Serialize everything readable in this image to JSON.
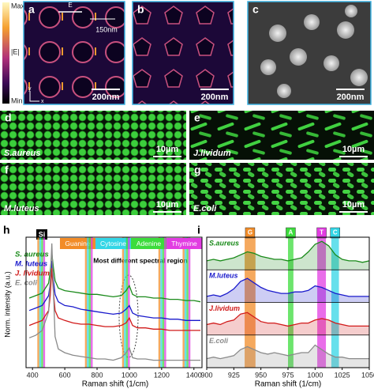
{
  "colorbar": {
    "max": "Max",
    "label": "|E|",
    "min": "Min"
  },
  "panels": {
    "a": {
      "label": "a",
      "field": "E",
      "diameter": "150nm",
      "scale": "200nm",
      "axes": [
        "y",
        "x"
      ]
    },
    "b": {
      "label": "b",
      "scale": "200nm"
    },
    "c": {
      "label": "c",
      "scale": "200nm"
    },
    "d": {
      "label": "d",
      "species": "S.aureus",
      "scale": "10µm"
    },
    "e": {
      "label": "e",
      "species": "J.lividum",
      "scale": "10µm"
    },
    "f": {
      "label": "f",
      "species": "M.luteus",
      "scale": "10µm"
    },
    "g": {
      "label": "g",
      "species": "E.coli",
      "scale": "10µm"
    }
  },
  "chart_data": [
    {
      "type": "line",
      "label": "h",
      "xlabel": "Raman shift (1/cm)",
      "ylabel": "Norm. intensity (a.u.)",
      "annotations": [
        "Si",
        "Most different spectral region"
      ],
      "x": [
        380,
        420,
        460,
        500,
        510,
        520,
        530,
        540,
        560,
        600,
        650,
        700,
        750,
        800,
        850,
        900,
        950,
        980,
        1000,
        1020,
        1050,
        1100,
        1150,
        1200,
        1250,
        1300,
        1350,
        1400,
        1440
      ],
      "series": [
        {
          "name": "S. aureus",
          "color": "#1a8a1a",
          "values": [
            5.6,
            5.8,
            6.0,
            6.8,
            7.8,
            9.2,
            8.0,
            7.0,
            6.4,
            6.2,
            6.1,
            6.0,
            5.9,
            5.9,
            5.8,
            5.7,
            5.8,
            6.2,
            6.6,
            5.9,
            5.7,
            5.7,
            5.6,
            5.6,
            5.5,
            5.5,
            5.4,
            5.4,
            5.3
          ]
        },
        {
          "name": "M. luteus",
          "color": "#1a1acc",
          "values": [
            4.6,
            4.8,
            5.0,
            5.8,
            6.8,
            8.6,
            7.0,
            5.9,
            5.3,
            5.0,
            4.9,
            4.7,
            4.6,
            4.5,
            4.4,
            4.3,
            4.4,
            4.7,
            5.0,
            4.4,
            4.2,
            4.1,
            4.0,
            4.0,
            3.9,
            3.9,
            3.8,
            3.8,
            3.8
          ]
        },
        {
          "name": "J. lividum",
          "color": "#d11a1a",
          "values": [
            3.4,
            3.6,
            3.8,
            4.6,
            5.8,
            8.0,
            6.0,
            4.6,
            4.0,
            3.8,
            3.6,
            3.5,
            3.5,
            3.4,
            3.3,
            3.3,
            3.4,
            3.6,
            4.0,
            3.4,
            3.2,
            3.2,
            3.1,
            3.1,
            3.0,
            3.0,
            3.0,
            3.0,
            3.0
          ]
        },
        {
          "name": "E. coli",
          "color": "#8a8a8a",
          "values": [
            2.4,
            2.6,
            3.0,
            4.5,
            7.0,
            10.0,
            6.0,
            2.5,
            1.5,
            1.2,
            1.0,
            0.9,
            0.8,
            0.7,
            0.7,
            0.6,
            0.8,
            1.2,
            1.6,
            0.8,
            0.7,
            0.7,
            0.6,
            0.6,
            0.6,
            0.6,
            0.6,
            0.6,
            0.6
          ]
        }
      ],
      "bands": [
        {
          "name": "Guanine",
          "color": "#f28c28",
          "ranges": [
            [
              430,
              442
            ],
            [
              725,
              737
            ],
            [
              955,
              967
            ],
            [
              1180,
              1192
            ],
            [
              1330,
              1342
            ]
          ]
        },
        {
          "name": "Cytosine",
          "color": "#33d6e6",
          "ranges": [
            [
              442,
              454
            ],
            [
              737,
              749
            ],
            [
              967,
              979
            ],
            [
              1192,
              1204
            ],
            [
              1342,
              1354
            ]
          ]
        },
        {
          "name": "Adenine",
          "color": "#3cdc3c",
          "ranges": [
            [
              454,
              466
            ],
            [
              749,
              761
            ],
            [
              979,
              991
            ],
            [
              1204,
              1216
            ],
            [
              1354,
              1366
            ]
          ]
        },
        {
          "name": "Thymine",
          "color": "#e23ce2",
          "ranges": [
            [
              466,
              478
            ],
            [
              761,
              773
            ],
            [
              991,
              1003
            ],
            [
              1216,
              1228
            ],
            [
              1366,
              1378
            ]
          ]
        }
      ],
      "xlim": [
        360,
        1450
      ],
      "xticks": [
        400,
        600,
        800,
        1000,
        1200,
        1400
      ],
      "ylim": [
        0,
        10.5
      ]
    },
    {
      "type": "area",
      "label": "i",
      "xlabel": "Raman shift (1/cm)",
      "x": [
        900,
        906.25,
        912.5,
        918.75,
        925,
        931.25,
        937.5,
        943.75,
        950,
        956.25,
        962.5,
        968.75,
        975,
        981.25,
        987.5,
        993.75,
        1000,
        1006.25,
        1012.5,
        1018.75,
        1025,
        1031.25,
        1037.5,
        1043.75,
        1050
      ],
      "series": [
        {
          "name": "S.aureus",
          "color": "#1a8a1a",
          "values": [
            0.3,
            0.35,
            0.3,
            0.35,
            0.4,
            0.5,
            0.6,
            0.55,
            0.45,
            0.4,
            0.35,
            0.35,
            0.3,
            0.35,
            0.4,
            0.6,
            0.85,
            0.95,
            0.8,
            0.5,
            0.35,
            0.3,
            0.3,
            0.25,
            0.3
          ]
        },
        {
          "name": "M.luteus",
          "color": "#1a1acc",
          "values": [
            0.2,
            0.25,
            0.2,
            0.3,
            0.45,
            0.7,
            0.8,
            0.65,
            0.5,
            0.4,
            0.35,
            0.3,
            0.3,
            0.35,
            0.35,
            0.4,
            0.55,
            0.5,
            0.4,
            0.3,
            0.25,
            0.2,
            0.2,
            0.2,
            0.2
          ]
        },
        {
          "name": "J.lividum",
          "color": "#d11a1a",
          "values": [
            0.35,
            0.4,
            0.35,
            0.45,
            0.5,
            0.7,
            0.75,
            0.6,
            0.45,
            0.4,
            0.4,
            0.35,
            0.3,
            0.35,
            0.4,
            0.4,
            0.5,
            0.55,
            0.5,
            0.4,
            0.35,
            0.3,
            0.3,
            0.3,
            0.3
          ]
        },
        {
          "name": "E.coli",
          "color": "#8a8a8a",
          "values": [
            0.3,
            0.35,
            0.3,
            0.35,
            0.4,
            0.6,
            0.7,
            0.6,
            0.5,
            0.45,
            0.5,
            0.45,
            0.4,
            0.45,
            0.5,
            0.5,
            0.75,
            0.6,
            0.45,
            0.35,
            0.35,
            0.3,
            0.3,
            0.3,
            0.3
          ]
        }
      ],
      "bands": [
        {
          "name": "G",
          "color": "#f28c28",
          "range": [
            935,
            945
          ]
        },
        {
          "name": "A",
          "color": "#3cdc3c",
          "range": [
            975,
            980
          ]
        },
        {
          "name": "T",
          "color": "#e23ce2",
          "range": [
            1002,
            1010
          ]
        },
        {
          "name": "C",
          "color": "#33d6e6",
          "range": [
            1015,
            1022
          ]
        }
      ],
      "xlim": [
        900,
        1050
      ],
      "xticks": [
        900,
        925,
        950,
        975,
        1000,
        1025,
        1050
      ],
      "ylim": [
        0,
        1
      ]
    }
  ]
}
